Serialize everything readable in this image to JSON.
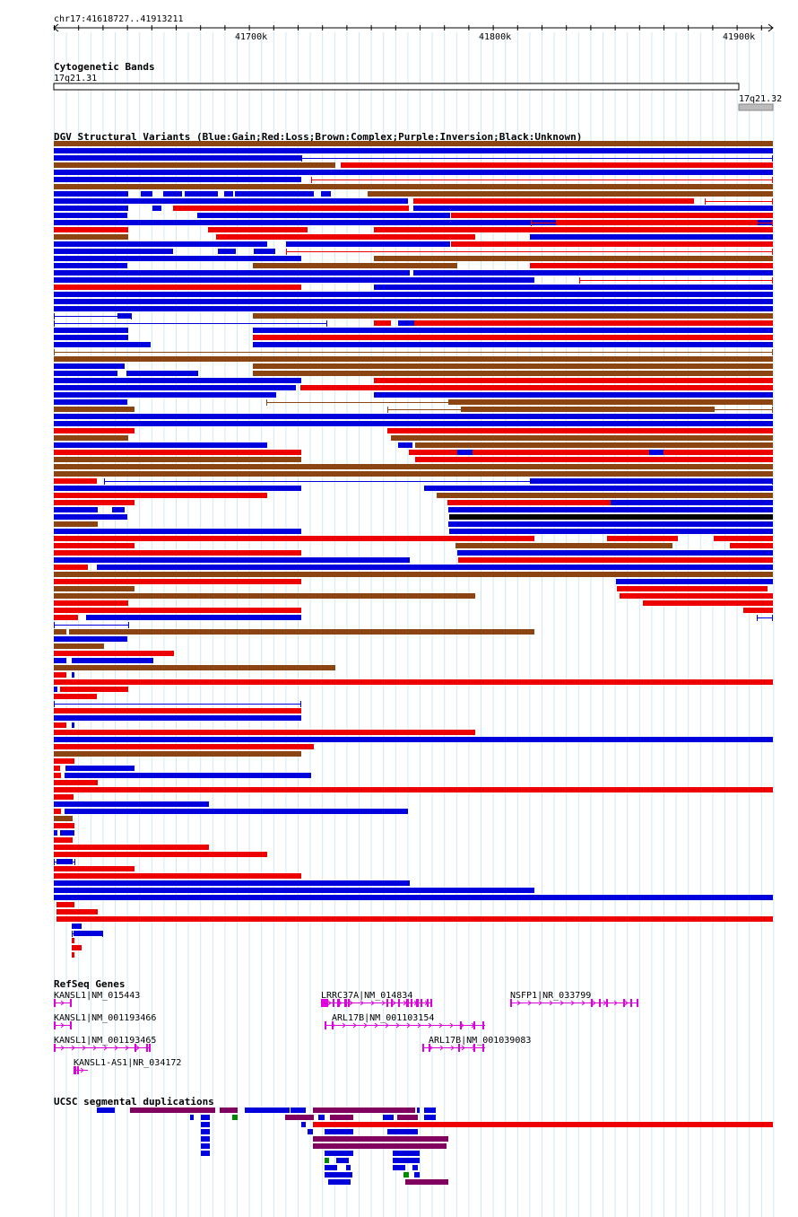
{
  "browser": {
    "position": "chr17:41618727..41913211",
    "ruler_ticks": [
      "41700k",
      "41800k",
      "41900k"
    ]
  },
  "tracks": {
    "cytoband": {
      "title": "Cytogenetic Bands",
      "bands": [
        "17q21.31",
        "17q21.32"
      ]
    },
    "dgv": {
      "title": "DGV Structural Variants (Blue:Gain;Red:Loss;Brown:Complex;Purple:Inversion;Black:Unknown)",
      "colors": {
        "gain": "#0000dd",
        "loss": "#ee0000",
        "complex": "#8b4513",
        "inversion": "#800080",
        "unknown": "#000000"
      }
    },
    "refseq": {
      "title": "RefSeq Genes",
      "color": "#dd00dd",
      "genes": [
        "KANSL1|NM_015443",
        "KANSL1|NM_001193466",
        "KANSL1|NM_001193465",
        "KANSL1-AS1|NR_034172",
        "LRRC37A|NM_014834",
        "ARL17B|NM_001103154",
        "ARL17B|NM_001039083",
        "NSFP1|NR_033799"
      ]
    },
    "segdup": {
      "title": "UCSC segmental duplications",
      "colors": {
        "blue": "#0000dd",
        "purple": "#800060",
        "red": "#ee0000",
        "green": "#008800"
      }
    }
  }
}
